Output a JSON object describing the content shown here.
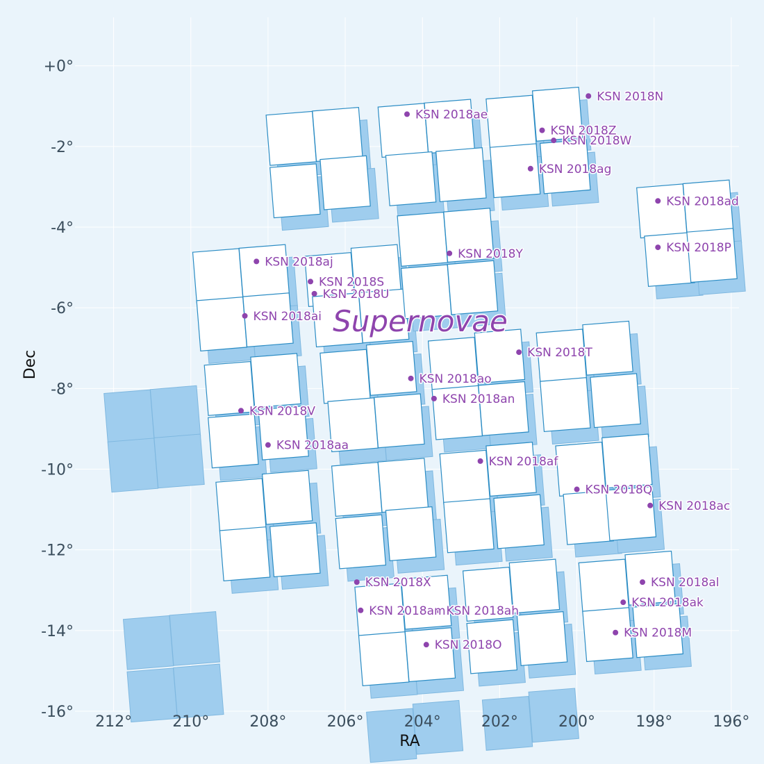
{
  "chart_data": {
    "type": "scatter",
    "title": "",
    "xlabel": "RA",
    "ylabel": "Dec",
    "xlim": [
      213,
      195.8
    ],
    "ylim": [
      -16,
      1.2
    ],
    "x_ticks": [
      212,
      210,
      208,
      206,
      204,
      202,
      200,
      198,
      196
    ],
    "x_tick_labels": [
      "212°",
      "210°",
      "208°",
      "206°",
      "204°",
      "202°",
      "200°",
      "198°",
      "196°"
    ],
    "y_ticks": [
      0,
      -2,
      -4,
      -6,
      -8,
      -10,
      -12,
      -14,
      -16
    ],
    "y_tick_labels": [
      "+0°",
      "-2°",
      "-4°",
      "-6°",
      "-8°",
      "-10°",
      "-12°",
      "-14°",
      "-16°"
    ],
    "grid": true,
    "annotation": "Supernovae",
    "colors": {
      "background": "#eaf4fb",
      "point": "#8e44ad",
      "module_outline": "#2b8cc4",
      "module_fill": "#ffffff",
      "shadow_fill": "#9fcdee",
      "grid": "#ffffff"
    },
    "footprint_modules": [
      [
        209.3,
        -5.2
      ],
      [
        208.1,
        -5.1
      ],
      [
        209.2,
        -6.4
      ],
      [
        208.0,
        -6.3
      ],
      [
        206.4,
        -5.3
      ],
      [
        205.2,
        -5.1
      ],
      [
        206.2,
        -6.3
      ],
      [
        205.0,
        -6.2
      ],
      [
        207.4,
        -1.8
      ],
      [
        206.2,
        -1.7
      ],
      [
        207.3,
        -3.1
      ],
      [
        206.0,
        -2.9
      ],
      [
        204.5,
        -1.6
      ],
      [
        203.3,
        -1.5
      ],
      [
        204.3,
        -2.8
      ],
      [
        203.0,
        -2.7
      ],
      [
        201.7,
        -1.4
      ],
      [
        200.5,
        -1.2
      ],
      [
        201.6,
        -2.6
      ],
      [
        200.3,
        -2.5
      ],
      [
        204.0,
        -4.3
      ],
      [
        202.8,
        -4.2
      ],
      [
        203.9,
        -5.6
      ],
      [
        202.7,
        -5.5
      ],
      [
        197.8,
        -3.6
      ],
      [
        196.6,
        -3.5
      ],
      [
        197.6,
        -4.8
      ],
      [
        196.5,
        -4.7
      ],
      [
        209.0,
        -8.0
      ],
      [
        207.8,
        -7.8
      ],
      [
        208.9,
        -9.3
      ],
      [
        207.6,
        -9.1
      ],
      [
        206.0,
        -7.7
      ],
      [
        204.8,
        -7.5
      ],
      [
        205.8,
        -8.9
      ],
      [
        204.6,
        -8.8
      ],
      [
        203.2,
        -7.4
      ],
      [
        202.0,
        -7.2
      ],
      [
        203.1,
        -8.6
      ],
      [
        201.9,
        -8.5
      ],
      [
        200.4,
        -7.2
      ],
      [
        199.2,
        -7.0
      ],
      [
        200.3,
        -8.4
      ],
      [
        199.0,
        -8.3
      ],
      [
        208.7,
        -10.9
      ],
      [
        207.5,
        -10.7
      ],
      [
        208.6,
        -12.1
      ],
      [
        207.3,
        -12.0
      ],
      [
        205.7,
        -10.5
      ],
      [
        204.5,
        -10.4
      ],
      [
        205.6,
        -11.8
      ],
      [
        204.3,
        -11.6
      ],
      [
        202.9,
        -10.2
      ],
      [
        201.7,
        -10.0
      ],
      [
        202.8,
        -11.4
      ],
      [
        201.5,
        -11.3
      ],
      [
        199.9,
        -10.0
      ],
      [
        198.7,
        -9.8
      ],
      [
        199.7,
        -11.2
      ],
      [
        198.6,
        -11.1
      ],
      [
        205.1,
        -13.5
      ],
      [
        203.9,
        -13.3
      ],
      [
        205.0,
        -14.7
      ],
      [
        203.8,
        -14.6
      ],
      [
        202.3,
        -13.1
      ],
      [
        201.1,
        -12.9
      ],
      [
        202.2,
        -14.4
      ],
      [
        200.9,
        -14.2
      ],
      [
        199.3,
        -12.9
      ],
      [
        198.1,
        -12.7
      ],
      [
        199.2,
        -14.1
      ],
      [
        197.9,
        -14.0
      ]
    ],
    "shadow_modules": [
      [
        211.6,
        -8.7
      ],
      [
        210.4,
        -8.6
      ],
      [
        211.5,
        -9.9
      ],
      [
        210.3,
        -9.8
      ],
      [
        211.1,
        -14.3
      ],
      [
        209.9,
        -14.2
      ],
      [
        211.0,
        -15.6
      ],
      [
        209.8,
        -15.5
      ],
      [
        204.8,
        -16.6
      ],
      [
        203.6,
        -16.4
      ],
      [
        201.8,
        -16.3
      ],
      [
        200.6,
        -16.1
      ]
    ],
    "points": [
      {
        "name": "KSN 2018N",
        "ra": 199.7,
        "dec": -0.75
      },
      {
        "name": "KSN 2018ae",
        "ra": 204.4,
        "dec": -1.2
      },
      {
        "name": "KSN 2018Z",
        "ra": 200.9,
        "dec": -1.6
      },
      {
        "name": "KSN 2018W",
        "ra": 200.6,
        "dec": -1.85
      },
      {
        "name": "KSN 2018ag",
        "ra": 201.2,
        "dec": -2.55
      },
      {
        "name": "KSN 2018ad",
        "ra": 197.9,
        "dec": -3.35
      },
      {
        "name": "KSN 2018P",
        "ra": 197.9,
        "dec": -4.5
      },
      {
        "name": "KSN 2018Y",
        "ra": 203.3,
        "dec": -4.65
      },
      {
        "name": "KSN 2018aj",
        "ra": 208.3,
        "dec": -4.85
      },
      {
        "name": "KSN 2018S",
        "ra": 206.9,
        "dec": -5.35
      },
      {
        "name": "KSN 2018U",
        "ra": 206.8,
        "dec": -5.65
      },
      {
        "name": "KSN 2018ai",
        "ra": 208.6,
        "dec": -6.2
      },
      {
        "name": "KSN 2018T",
        "ra": 201.5,
        "dec": -7.1
      },
      {
        "name": "KSN 2018ao",
        "ra": 204.3,
        "dec": -7.75
      },
      {
        "name": "KSN 2018an",
        "ra": 203.7,
        "dec": -8.25
      },
      {
        "name": "KSN 2018V",
        "ra": 208.7,
        "dec": -8.55
      },
      {
        "name": "KSN 2018aa",
        "ra": 208.0,
        "dec": -9.4
      },
      {
        "name": "KSN 2018af",
        "ra": 202.5,
        "dec": -9.8
      },
      {
        "name": "KSN 2018Q",
        "ra": 200.0,
        "dec": -10.5
      },
      {
        "name": "KSN 2018ac",
        "ra": 198.1,
        "dec": -10.9
      },
      {
        "name": "KSN 2018X",
        "ra": 205.7,
        "dec": -12.8
      },
      {
        "name": "KSN 2018al",
        "ra": 198.3,
        "dec": -12.8
      },
      {
        "name": "KSN 2018ak",
        "ra": 198.8,
        "dec": -13.3
      },
      {
        "name": "KSN 2018am",
        "ra": 205.6,
        "dec": -13.5
      },
      {
        "name": "KSN 2018ah",
        "ra": 203.6,
        "dec": -13.5
      },
      {
        "name": "KSN 2018M",
        "ra": 199.0,
        "dec": -14.05
      },
      {
        "name": "KSN 2018O",
        "ra": 203.9,
        "dec": -14.35
      }
    ]
  }
}
